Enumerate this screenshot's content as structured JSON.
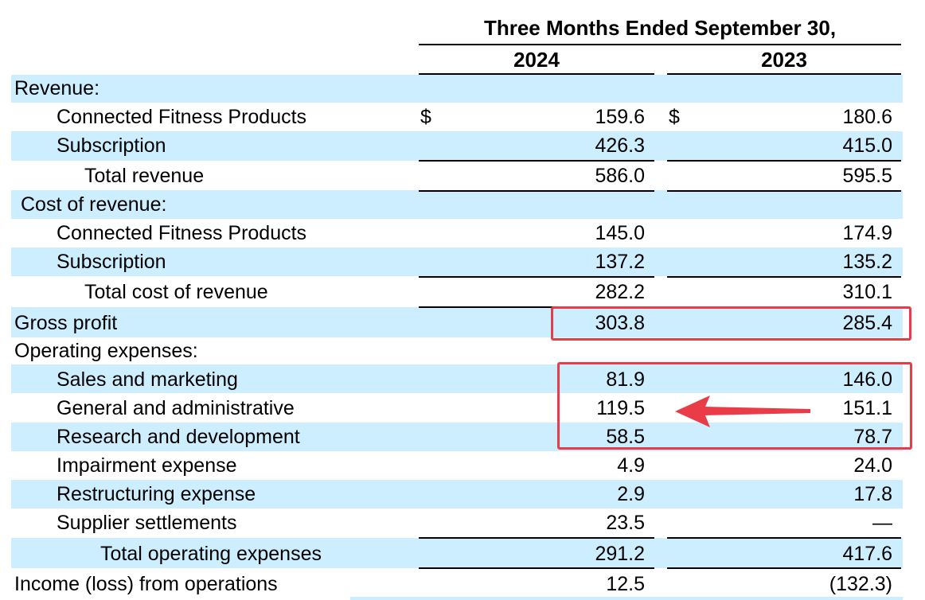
{
  "header": {
    "period_title": "Three Months Ended September 30,",
    "year_1": "2024",
    "year_2": "2023"
  },
  "currency_symbol": "$",
  "rows": [
    {
      "label": "Revenue:",
      "v1": "",
      "v2": ""
    },
    {
      "label": "Connected Fitness Products",
      "v1": "159.6",
      "v2": "180.6"
    },
    {
      "label": "Subscription",
      "v1": "426.3",
      "v2": "415.0"
    },
    {
      "label": "Total revenue",
      "v1": "586.0",
      "v2": "595.5"
    },
    {
      "label": "Cost of revenue:",
      "v1": "",
      "v2": ""
    },
    {
      "label": "Connected Fitness Products",
      "v1": "145.0",
      "v2": "174.9"
    },
    {
      "label": "Subscription",
      "v1": "137.2",
      "v2": "135.2"
    },
    {
      "label": "Total cost of revenue",
      "v1": "282.2",
      "v2": "310.1"
    },
    {
      "label": "Gross profit",
      "v1": "303.8",
      "v2": "285.4"
    },
    {
      "label": "Operating expenses:",
      "v1": "",
      "v2": ""
    },
    {
      "label": "Sales and marketing",
      "v1": "81.9",
      "v2": "146.0"
    },
    {
      "label": "General and administrative",
      "v1": "119.5",
      "v2": "151.1"
    },
    {
      "label": "Research and development",
      "v1": "58.5",
      "v2": "78.7"
    },
    {
      "label": "Impairment expense",
      "v1": "4.9",
      "v2": "24.0"
    },
    {
      "label": "Restructuring expense",
      "v1": "2.9",
      "v2": "17.8"
    },
    {
      "label": "Supplier settlements",
      "v1": "23.5",
      "v2": "—"
    },
    {
      "label": "Total operating expenses",
      "v1": "291.2",
      "v2": "417.6"
    },
    {
      "label": "Income (loss) from operations",
      "v1": "12.5",
      "v2": "(132.3)"
    }
  ],
  "highlight_color": "#ea3c48",
  "band_color": "#cdeefe"
}
